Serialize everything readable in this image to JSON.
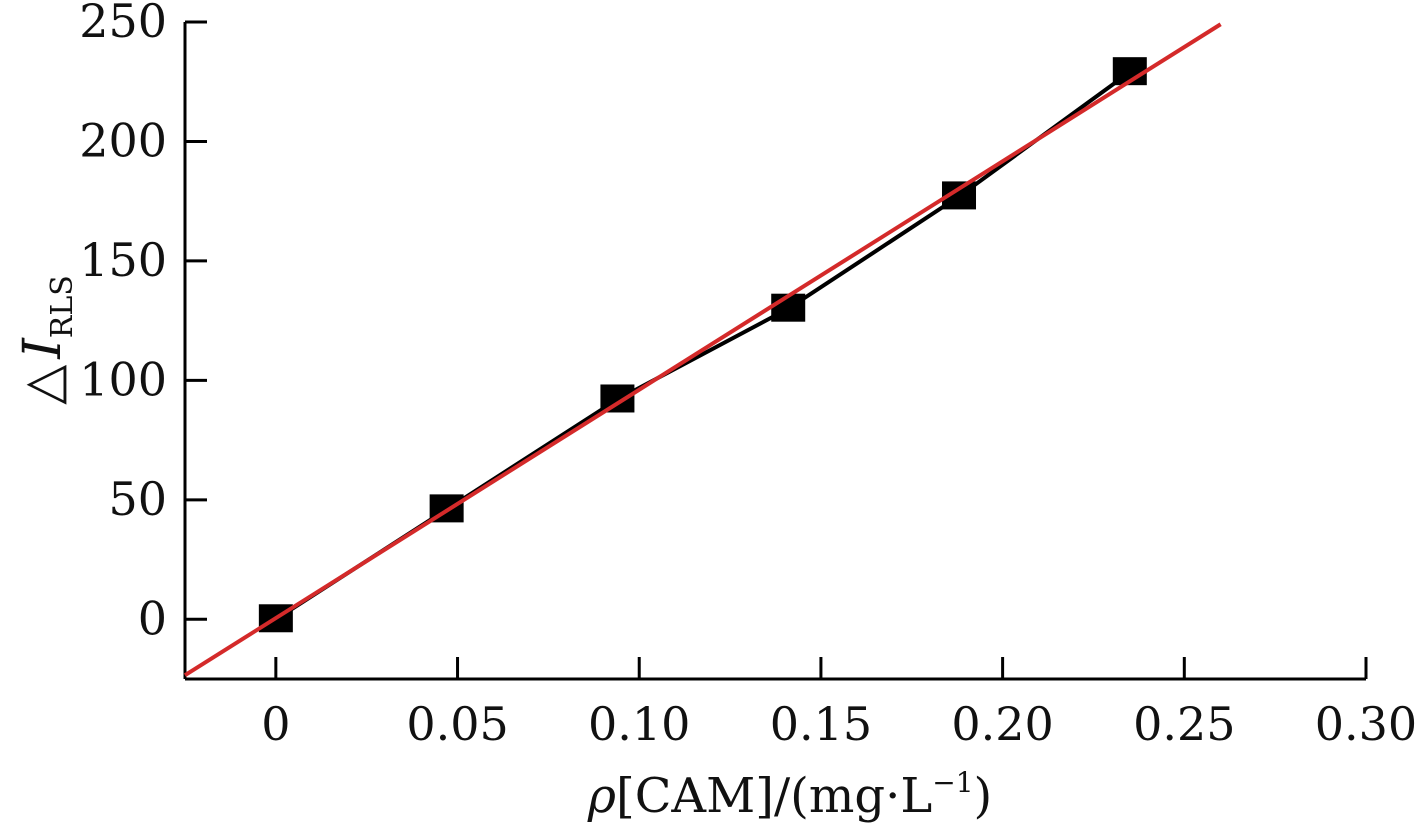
{
  "chart_data": {
    "type": "scatter",
    "title": "",
    "xlabel_rho": "ρ",
    "xlabel_main": "[CAM]/(mg·L",
    "xlabel_sup": "−1",
    "xlabel_close": ")",
    "ylabel_delta": "△",
    "ylabel_I": "I",
    "ylabel_sub": "RLS",
    "xlim": [
      -0.025,
      0.3
    ],
    "ylim": [
      -25,
      250
    ],
    "xticks": [
      0,
      0.05,
      0.1,
      0.15,
      0.2,
      0.25,
      0.3
    ],
    "xtick_labels": [
      "0",
      "0.05",
      "0.10",
      "0.15",
      "0.20",
      "0.25",
      "0.30"
    ],
    "yticks": [
      0,
      50,
      100,
      150,
      200,
      250
    ],
    "ytick_labels": [
      "0",
      "50",
      "100",
      "150",
      "200",
      "250"
    ],
    "series": [
      {
        "marker": "square",
        "color": "#000000",
        "connected": true,
        "x": [
          0,
          0.047,
          0.094,
          0.141,
          0.188,
          0.235
        ],
        "y": [
          0,
          46,
          92,
          130,
          177,
          229
        ]
      }
    ],
    "fit_line": {
      "color": "#d42a2a",
      "x_range": [
        -0.025,
        0.26
      ],
      "slope": 956,
      "intercept": 0.5
    }
  }
}
